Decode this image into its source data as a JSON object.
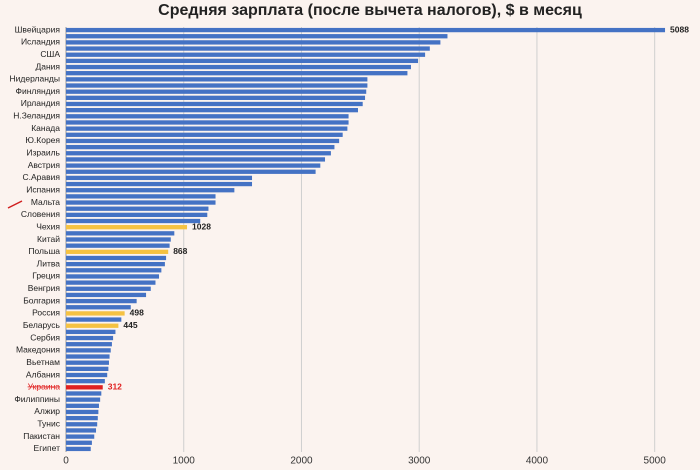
{
  "chart_data": {
    "type": "hbar",
    "title": "Средняя зарплата (после вычета налогов), $ в месяц",
    "categories": [
      "Швейцария",
      null,
      "Исландия",
      null,
      "США",
      null,
      "Дания",
      null,
      "Нидерланды",
      null,
      "Финляндия",
      null,
      "Ирландия",
      null,
      "Н.Зеландия",
      null,
      "Канада",
      null,
      "Ю.Корея",
      null,
      "Израиль",
      null,
      "Австрия",
      null,
      "С.Аравия",
      null,
      "Испания",
      null,
      "Мальта",
      null,
      "Словения",
      null,
      "Чехия",
      null,
      "Китай",
      null,
      "Польша",
      null,
      "Литва",
      null,
      "Греция",
      null,
      "Венгрия",
      null,
      "Болгария",
      null,
      "Россия",
      null,
      "Беларусь",
      null,
      "Сербия",
      null,
      "Македония",
      null,
      "Вьетнам",
      null,
      "Албания",
      null,
      "Украина",
      null,
      "Филиппины",
      null,
      "Алжир",
      null,
      "Тунис",
      null,
      "Пакистан",
      null,
      "Египет"
    ],
    "values": [
      5088,
      3240,
      3180,
      3090,
      3050,
      2990,
      2930,
      2900,
      2560,
      2560,
      2550,
      2540,
      2520,
      2480,
      2400,
      2400,
      2390,
      2350,
      2320,
      2280,
      2250,
      2200,
      2160,
      2120,
      1580,
      1580,
      1430,
      1270,
      1270,
      1210,
      1200,
      1140,
      1028,
      920,
      890,
      880,
      868,
      850,
      840,
      810,
      790,
      760,
      720,
      680,
      600,
      550,
      498,
      470,
      445,
      420,
      400,
      390,
      380,
      370,
      365,
      360,
      350,
      330,
      312,
      300,
      290,
      280,
      275,
      270,
      265,
      255,
      240,
      220,
      210
    ],
    "value_labels": [
      "5088",
      null,
      null,
      null,
      null,
      null,
      null,
      null,
      null,
      null,
      null,
      null,
      null,
      null,
      null,
      null,
      null,
      null,
      null,
      null,
      null,
      null,
      null,
      null,
      null,
      null,
      null,
      null,
      null,
      null,
      null,
      null,
      "1028",
      null,
      null,
      null,
      "868",
      null,
      null,
      null,
      null,
      null,
      null,
      null,
      null,
      null,
      "498",
      null,
      "445",
      null,
      null,
      null,
      null,
      null,
      null,
      null,
      null,
      null,
      "312",
      null,
      null,
      null,
      null,
      null,
      null,
      null,
      null,
      null,
      null
    ],
    "colors": [
      "#4472c4",
      "#4472c4",
      "#4472c4",
      "#4472c4",
      "#4472c4",
      "#4472c4",
      "#4472c4",
      "#4472c4",
      "#4472c4",
      "#4472c4",
      "#4472c4",
      "#4472c4",
      "#4472c4",
      "#4472c4",
      "#4472c4",
      "#4472c4",
      "#4472c4",
      "#4472c4",
      "#4472c4",
      "#4472c4",
      "#4472c4",
      "#4472c4",
      "#4472c4",
      "#4472c4",
      "#4472c4",
      "#4472c4",
      "#4472c4",
      "#4472c4",
      "#4472c4",
      "#4472c4",
      "#4472c4",
      "#4472c4",
      "#f5c242",
      "#4472c4",
      "#4472c4",
      "#4472c4",
      "#f5c242",
      "#4472c4",
      "#4472c4",
      "#4472c4",
      "#4472c4",
      "#4472c4",
      "#4472c4",
      "#4472c4",
      "#4472c4",
      "#4472c4",
      "#f5c242",
      "#4472c4",
      "#f5c242",
      "#4472c4",
      "#4472c4",
      "#4472c4",
      "#4472c4",
      "#4472c4",
      "#4472c4",
      "#4472c4",
      "#4472c4",
      "#4472c4",
      "#e02020",
      "#4472c4",
      "#4472c4",
      "#4472c4",
      "#4472c4",
      "#4472c4",
      "#4472c4",
      "#4472c4",
      "#4472c4",
      "#4472c4",
      "#4472c4"
    ],
    "text_highlight": "#e02020",
    "xlim": [
      0,
      5300
    ],
    "xticks": [
      0,
      1000,
      2000,
      3000,
      4000,
      5000
    ],
    "grid": true
  }
}
